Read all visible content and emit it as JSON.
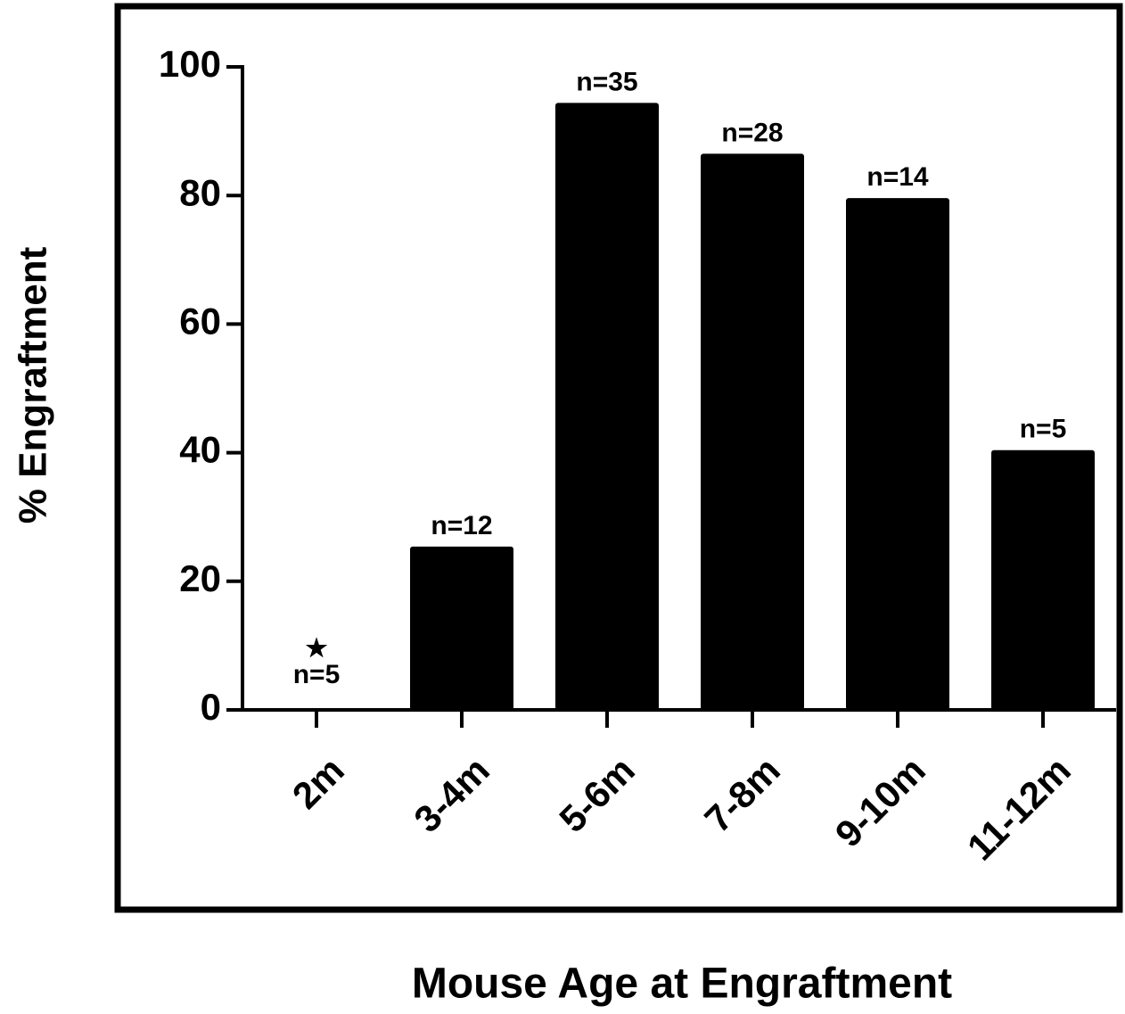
{
  "chart_data": {
    "type": "bar",
    "ylabel": "% Engraftment",
    "xlabel": "Mouse Age at Engraftment",
    "categories": [
      "2m",
      "3-4m",
      "5-6m",
      "7-8m",
      "9-10m",
      "11-12m"
    ],
    "values": [
      0,
      25.4,
      94.4,
      86.5,
      79.6,
      40.4
    ],
    "annotations": [
      "n=5",
      "n=12",
      "n=35",
      "n=28",
      "n=14",
      "n=5"
    ],
    "significance": [
      "★",
      null,
      null,
      null,
      null,
      null
    ],
    "color": "#000000",
    "ylim": [
      0,
      100
    ],
    "yticks": [
      0,
      20,
      40,
      60,
      80,
      100
    ],
    "grid": false
  }
}
